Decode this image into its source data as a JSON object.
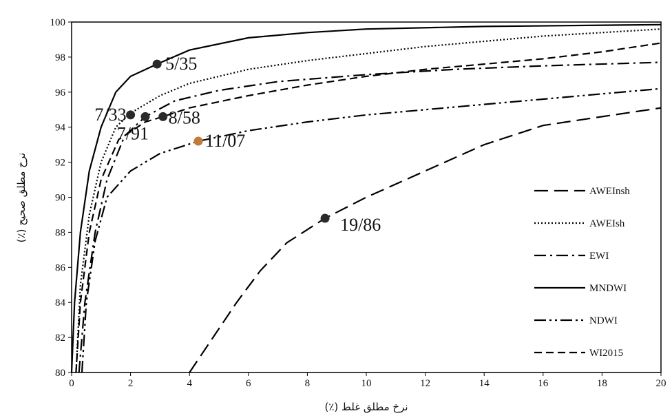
{
  "chart_data": {
    "type": "line",
    "title": "",
    "xlabel": "نرخ مطلق غلط (٪)",
    "ylabel": "نرخ مطلق صحیح (٪)",
    "xlim": [
      0,
      20
    ],
    "ylim": [
      80,
      100
    ],
    "x_ticks": [
      "0",
      "2",
      "4",
      "6",
      "8",
      "10",
      "12",
      "14",
      "16",
      "18",
      "20"
    ],
    "y_ticks": [
      "80",
      "82",
      "84",
      "86",
      "88",
      "90",
      "92",
      "94",
      "96",
      "98",
      "100"
    ],
    "grid": false,
    "legend_position": "right",
    "series": [
      {
        "name": "AWEInsh",
        "dash": "longdash",
        "color": "#000000",
        "points": [
          [
            4.0,
            80.0
          ],
          [
            4.8,
            82.0
          ],
          [
            5.6,
            84.0
          ],
          [
            6.4,
            85.8
          ],
          [
            7.3,
            87.4
          ],
          [
            8.6,
            88.8
          ],
          [
            10.0,
            90.0
          ],
          [
            12.0,
            91.5
          ],
          [
            14.0,
            93.0
          ],
          [
            16.0,
            94.1
          ],
          [
            18.0,
            94.6
          ],
          [
            20.0,
            95.1
          ]
        ]
      },
      {
        "name": "AWEIsh",
        "dash": "dotted",
        "color": "#000000",
        "points": [
          [
            0.15,
            80.0
          ],
          [
            0.3,
            85.0
          ],
          [
            0.6,
            89.0
          ],
          [
            1.0,
            92.0
          ],
          [
            1.5,
            94.0
          ],
          [
            2.0,
            94.8
          ],
          [
            3.0,
            95.8
          ],
          [
            4.0,
            96.5
          ],
          [
            6.0,
            97.3
          ],
          [
            8.0,
            97.8
          ],
          [
            10.0,
            98.2
          ],
          [
            12.0,
            98.6
          ],
          [
            14.0,
            98.9
          ],
          [
            16.0,
            99.2
          ],
          [
            18.0,
            99.4
          ],
          [
            20.0,
            99.6
          ]
        ]
      },
      {
        "name": "EWI",
        "dash": "dashdot",
        "color": "#000000",
        "points": [
          [
            0.25,
            80.0
          ],
          [
            0.45,
            84.0
          ],
          [
            0.8,
            88.0
          ],
          [
            1.2,
            91.0
          ],
          [
            1.8,
            93.5
          ],
          [
            2.5,
            94.6
          ],
          [
            3.5,
            95.5
          ],
          [
            5.0,
            96.1
          ],
          [
            7.0,
            96.6
          ],
          [
            10.0,
            97.0
          ],
          [
            13.0,
            97.3
          ],
          [
            16.0,
            97.5
          ],
          [
            20.0,
            97.7
          ]
        ]
      },
      {
        "name": "MNDWI",
        "dash": "solid",
        "color": "#000000",
        "points": [
          [
            0.0,
            80.0
          ],
          [
            0.1,
            84.0
          ],
          [
            0.3,
            88.0
          ],
          [
            0.6,
            91.5
          ],
          [
            1.0,
            94.0
          ],
          [
            1.5,
            96.0
          ],
          [
            2.0,
            96.9
          ],
          [
            2.9,
            97.6
          ],
          [
            4.0,
            98.4
          ],
          [
            6.0,
            99.1
          ],
          [
            8.0,
            99.4
          ],
          [
            10.0,
            99.6
          ],
          [
            14.0,
            99.75
          ],
          [
            20.0,
            99.85
          ]
        ]
      },
      {
        "name": "NDWI",
        "dash": "dashdotdot",
        "color": "#000000",
        "points": [
          [
            0.35,
            80.0
          ],
          [
            0.5,
            84.0
          ],
          [
            0.8,
            87.5
          ],
          [
            1.2,
            90.0
          ],
          [
            2.0,
            91.5
          ],
          [
            3.0,
            92.5
          ],
          [
            4.3,
            93.2
          ],
          [
            6.0,
            93.8
          ],
          [
            8.0,
            94.3
          ],
          [
            10.0,
            94.7
          ],
          [
            12.0,
            95.0
          ],
          [
            14.0,
            95.3
          ],
          [
            16.0,
            95.6
          ],
          [
            18.0,
            95.9
          ],
          [
            20.0,
            96.2
          ]
        ]
      },
      {
        "name": "WI2015",
        "dash": "dashed",
        "color": "#000000",
        "points": [
          [
            0.15,
            80.0
          ],
          [
            0.3,
            84.0
          ],
          [
            0.6,
            88.0
          ],
          [
            1.0,
            91.0
          ],
          [
            1.6,
            93.3
          ],
          [
            2.5,
            94.3
          ],
          [
            3.1,
            94.6
          ],
          [
            4.0,
            95.1
          ],
          [
            6.0,
            95.8
          ],
          [
            8.0,
            96.4
          ],
          [
            10.0,
            96.9
          ],
          [
            12.0,
            97.3
          ],
          [
            14.0,
            97.6
          ],
          [
            16.0,
            97.9
          ],
          [
            18.0,
            98.3
          ],
          [
            20.0,
            98.8
          ]
        ]
      }
    ],
    "markers": [
      {
        "x": 2.9,
        "y": 97.6,
        "label": "5/35",
        "color": "#2a2a2a"
      },
      {
        "x": 2.0,
        "y": 94.7,
        "label": "7/33",
        "color": "#2a2a2a"
      },
      {
        "x": 2.5,
        "y": 94.6,
        "label": "7/91",
        "color": "#2a2a2a"
      },
      {
        "x": 3.1,
        "y": 94.6,
        "label": "8/58",
        "color": "#2a2a2a"
      },
      {
        "x": 4.3,
        "y": 93.2,
        "label": "11/07",
        "color": "#c07a3c"
      },
      {
        "x": 8.6,
        "y": 88.8,
        "label": "19/86",
        "color": "#2a2a2a"
      }
    ]
  }
}
